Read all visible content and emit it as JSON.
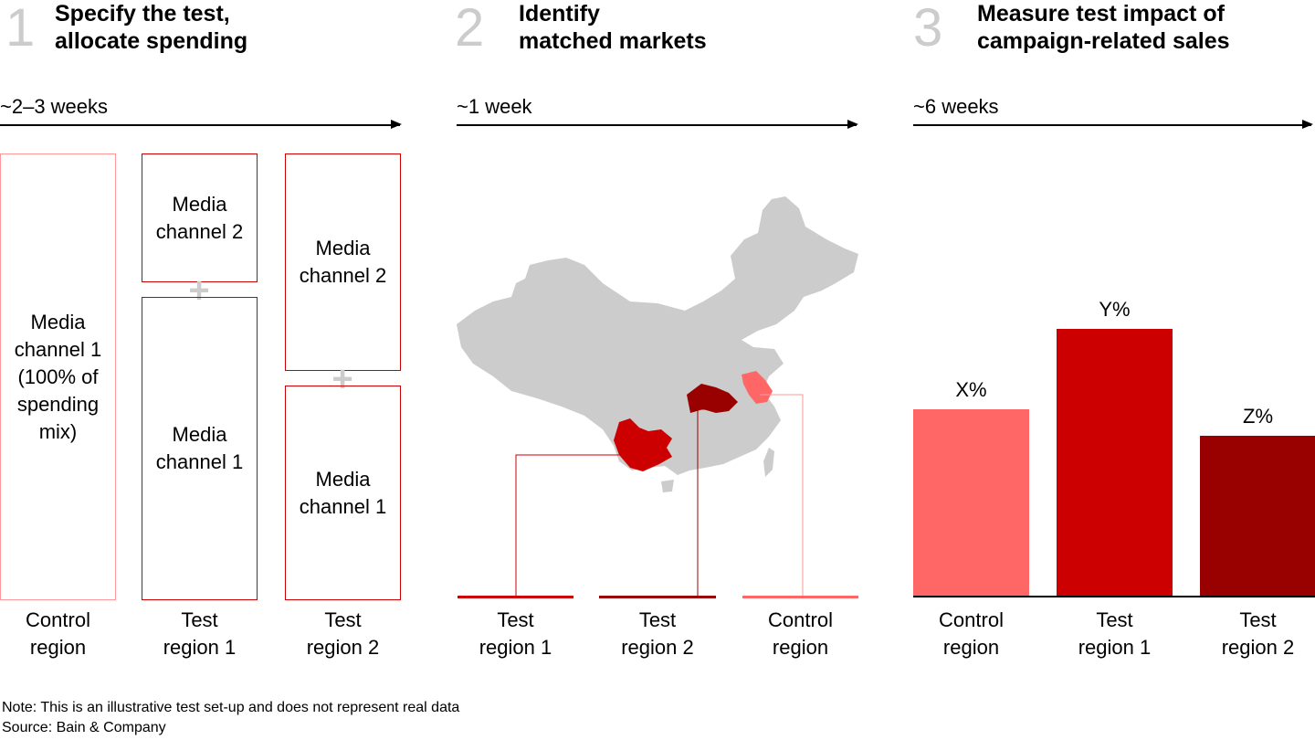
{
  "steps": [
    {
      "number": "1",
      "title": "Specify the test,\nallocate spending",
      "duration": "~2–3 weeks"
    },
    {
      "number": "2",
      "title": "Identify\nmatched markets",
      "duration": "~1 week"
    },
    {
      "number": "3",
      "title": "Measure test impact of\ncampaign-related sales",
      "duration": "~6 weeks"
    }
  ],
  "panel1": {
    "control_box": "Media\nchannel 1\n(100% of\nspending\nmix)",
    "test1_top": "Media\nchannel 2",
    "test1_bottom": "Media\nchannel 1",
    "test2_top": "Media\nchannel 2",
    "test2_bottom": "Media\nchannel 1",
    "plus": "+",
    "labels": [
      "Control\nregion",
      "Test\nregion 1",
      "Test\nregion 2"
    ]
  },
  "panel2": {
    "labels": [
      "Test\nregion 1",
      "Test\nregion 2",
      "Control\nregion"
    ],
    "colors": {
      "test1": "#cc0000",
      "test2": "#990000",
      "control": "#ff6666",
      "land": "#cccccc"
    }
  },
  "chart_data": {
    "type": "bar",
    "categories": [
      "Control\nregion",
      "Test\nregion 1",
      "Test\nregion 2"
    ],
    "value_labels": [
      "X%",
      "Y%",
      "Z%"
    ],
    "values": [
      0.7,
      1.0,
      0.6
    ],
    "colors": [
      "#ff6666",
      "#cc0000",
      "#990000"
    ]
  },
  "footer": {
    "note": "Note: This is an illustrative test set-up and does not represent real data",
    "source": "Source: Bain & Company"
  }
}
